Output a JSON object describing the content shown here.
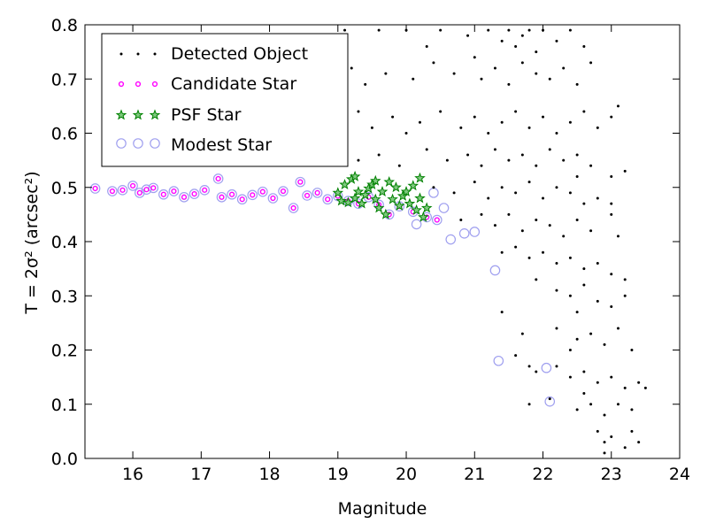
{
  "chart_data": {
    "type": "scatter",
    "xlabel": "Magnitude",
    "ylabel": "T = 2σ² (arcsec²)",
    "xlim": [
      15.3,
      24.0
    ],
    "ylim": [
      0.0,
      0.8
    ],
    "x_ticks": [
      16,
      17,
      18,
      19,
      20,
      21,
      22,
      23,
      24
    ],
    "y_ticks": [
      0.0,
      0.1,
      0.2,
      0.3,
      0.4,
      0.5,
      0.6,
      0.7,
      0.8
    ],
    "x_tick_labels": [
      "16",
      "17",
      "18",
      "19",
      "20",
      "21",
      "22",
      "23",
      "24"
    ],
    "y_tick_labels": [
      "0.0",
      "0.1",
      "0.2",
      "0.3",
      "0.4",
      "0.5",
      "0.6",
      "0.7",
      "0.8"
    ],
    "grid": false,
    "legend_position": "top-left",
    "colors": {
      "detected": "#000000",
      "candidate": "#ff00ff",
      "psf_edge": "#008000",
      "psf_fill": "#7fc97f",
      "modest": "#9f9fef"
    },
    "series": [
      {
        "name": "Detected Object",
        "marker": "dot",
        "points": [
          [
            19.1,
            0.79
          ],
          [
            19.6,
            0.79
          ],
          [
            20.0,
            0.79
          ],
          [
            20.3,
            0.76
          ],
          [
            20.5,
            0.79
          ],
          [
            20.9,
            0.78
          ],
          [
            21.0,
            0.74
          ],
          [
            21.2,
            0.79
          ],
          [
            21.4,
            0.77
          ],
          [
            21.5,
            0.79
          ],
          [
            21.6,
            0.76
          ],
          [
            21.7,
            0.78
          ],
          [
            21.8,
            0.79
          ],
          [
            21.9,
            0.75
          ],
          [
            22.0,
            0.79
          ],
          [
            22.2,
            0.77
          ],
          [
            22.4,
            0.79
          ],
          [
            22.6,
            0.76
          ],
          [
            19.2,
            0.72
          ],
          [
            19.4,
            0.69
          ],
          [
            19.7,
            0.71
          ],
          [
            20.1,
            0.7
          ],
          [
            20.4,
            0.73
          ],
          [
            20.7,
            0.71
          ],
          [
            21.1,
            0.7
          ],
          [
            21.3,
            0.72
          ],
          [
            21.5,
            0.69
          ],
          [
            21.7,
            0.73
          ],
          [
            21.9,
            0.71
          ],
          [
            22.1,
            0.7
          ],
          [
            22.3,
            0.72
          ],
          [
            22.5,
            0.69
          ],
          [
            22.7,
            0.73
          ],
          [
            23.1,
            0.65
          ],
          [
            19.3,
            0.64
          ],
          [
            19.5,
            0.61
          ],
          [
            19.8,
            0.63
          ],
          [
            20.0,
            0.6
          ],
          [
            20.2,
            0.62
          ],
          [
            20.5,
            0.64
          ],
          [
            20.8,
            0.61
          ],
          [
            21.0,
            0.63
          ],
          [
            21.2,
            0.6
          ],
          [
            21.4,
            0.62
          ],
          [
            21.6,
            0.64
          ],
          [
            21.8,
            0.61
          ],
          [
            22.0,
            0.63
          ],
          [
            22.2,
            0.6
          ],
          [
            22.4,
            0.62
          ],
          [
            22.6,
            0.64
          ],
          [
            22.8,
            0.61
          ],
          [
            23.0,
            0.63
          ],
          [
            19.1,
            0.57
          ],
          [
            19.3,
            0.55
          ],
          [
            19.6,
            0.56
          ],
          [
            19.9,
            0.54
          ],
          [
            20.3,
            0.57
          ],
          [
            20.6,
            0.55
          ],
          [
            20.9,
            0.56
          ],
          [
            21.1,
            0.54
          ],
          [
            21.3,
            0.57
          ],
          [
            21.5,
            0.55
          ],
          [
            21.7,
            0.56
          ],
          [
            21.9,
            0.54
          ],
          [
            22.1,
            0.57
          ],
          [
            22.3,
            0.55
          ],
          [
            22.5,
            0.56
          ],
          [
            22.7,
            0.54
          ],
          [
            23.0,
            0.52
          ],
          [
            23.2,
            0.53
          ],
          [
            20.4,
            0.5
          ],
          [
            20.7,
            0.49
          ],
          [
            21.0,
            0.51
          ],
          [
            21.2,
            0.48
          ],
          [
            21.4,
            0.5
          ],
          [
            21.6,
            0.49
          ],
          [
            21.8,
            0.51
          ],
          [
            22.0,
            0.48
          ],
          [
            22.2,
            0.5
          ],
          [
            22.4,
            0.49
          ],
          [
            22.6,
            0.47
          ],
          [
            22.8,
            0.48
          ],
          [
            23.0,
            0.47
          ],
          [
            22.5,
            0.52
          ],
          [
            20.8,
            0.44
          ],
          [
            21.1,
            0.45
          ],
          [
            21.3,
            0.43
          ],
          [
            21.5,
            0.45
          ],
          [
            21.7,
            0.42
          ],
          [
            21.9,
            0.44
          ],
          [
            22.1,
            0.43
          ],
          [
            22.3,
            0.41
          ],
          [
            22.5,
            0.44
          ],
          [
            22.7,
            0.42
          ],
          [
            23.0,
            0.45
          ],
          [
            23.1,
            0.41
          ],
          [
            21.4,
            0.38
          ],
          [
            21.6,
            0.39
          ],
          [
            21.8,
            0.37
          ],
          [
            22.0,
            0.38
          ],
          [
            22.2,
            0.36
          ],
          [
            22.4,
            0.37
          ],
          [
            22.6,
            0.35
          ],
          [
            22.8,
            0.36
          ],
          [
            23.0,
            0.34
          ],
          [
            23.2,
            0.33
          ],
          [
            21.9,
            0.33
          ],
          [
            22.2,
            0.31
          ],
          [
            22.4,
            0.3
          ],
          [
            22.6,
            0.32
          ],
          [
            22.8,
            0.29
          ],
          [
            23.0,
            0.28
          ],
          [
            23.2,
            0.3
          ],
          [
            22.5,
            0.27
          ],
          [
            21.4,
            0.27
          ],
          [
            21.7,
            0.23
          ],
          [
            22.2,
            0.24
          ],
          [
            22.5,
            0.22
          ],
          [
            22.7,
            0.23
          ],
          [
            22.9,
            0.21
          ],
          [
            23.1,
            0.24
          ],
          [
            23.3,
            0.2
          ],
          [
            22.4,
            0.2
          ],
          [
            21.8,
            0.17
          ],
          [
            21.9,
            0.16
          ],
          [
            22.2,
            0.17
          ],
          [
            22.4,
            0.15
          ],
          [
            22.6,
            0.16
          ],
          [
            22.8,
            0.14
          ],
          [
            23.0,
            0.15
          ],
          [
            23.2,
            0.13
          ],
          [
            23.4,
            0.14
          ],
          [
            23.5,
            0.13
          ],
          [
            21.6,
            0.19
          ],
          [
            21.8,
            0.1
          ],
          [
            22.1,
            0.11
          ],
          [
            22.5,
            0.09
          ],
          [
            22.7,
            0.1
          ],
          [
            22.9,
            0.08
          ],
          [
            23.1,
            0.1
          ],
          [
            23.3,
            0.09
          ],
          [
            22.6,
            0.12
          ],
          [
            22.8,
            0.05
          ],
          [
            22.9,
            0.03
          ],
          [
            23.0,
            0.04
          ],
          [
            23.2,
            0.02
          ],
          [
            23.3,
            0.05
          ],
          [
            22.9,
            0.01
          ],
          [
            23.4,
            0.03
          ]
        ]
      },
      {
        "name": "Candidate Star",
        "marker": "circle-small",
        "points": [
          [
            15.45,
            0.498
          ],
          [
            15.7,
            0.493
          ],
          [
            15.85,
            0.495
          ],
          [
            16.0,
            0.503
          ],
          [
            16.1,
            0.49
          ],
          [
            16.2,
            0.496
          ],
          [
            16.3,
            0.499
          ],
          [
            16.45,
            0.487
          ],
          [
            16.6,
            0.493
          ],
          [
            16.75,
            0.482
          ],
          [
            16.9,
            0.488
          ],
          [
            17.05,
            0.495
          ],
          [
            17.25,
            0.516
          ],
          [
            17.3,
            0.482
          ],
          [
            17.45,
            0.487
          ],
          [
            17.6,
            0.478
          ],
          [
            17.75,
            0.486
          ],
          [
            17.9,
            0.492
          ],
          [
            18.05,
            0.48
          ],
          [
            18.2,
            0.493
          ],
          [
            18.35,
            0.462
          ],
          [
            18.45,
            0.51
          ],
          [
            18.55,
            0.485
          ],
          [
            18.7,
            0.49
          ],
          [
            18.85,
            0.478
          ],
          [
            19.0,
            0.484
          ],
          [
            19.15,
            0.475
          ],
          [
            19.3,
            0.47
          ],
          [
            19.45,
            0.482
          ],
          [
            19.6,
            0.468
          ],
          [
            19.75,
            0.45
          ],
          [
            19.9,
            0.465
          ],
          [
            20.1,
            0.455
          ],
          [
            20.3,
            0.445
          ],
          [
            20.45,
            0.44
          ]
        ]
      },
      {
        "name": "PSF Star",
        "marker": "star",
        "points": [
          [
            19.0,
            0.49
          ],
          [
            19.05,
            0.475
          ],
          [
            19.1,
            0.505
          ],
          [
            19.15,
            0.472
          ],
          [
            19.2,
            0.515
          ],
          [
            19.25,
            0.48
          ],
          [
            19.3,
            0.492
          ],
          [
            19.35,
            0.47
          ],
          [
            19.4,
            0.486
          ],
          [
            19.45,
            0.498
          ],
          [
            19.5,
            0.505
          ],
          [
            19.55,
            0.478
          ],
          [
            19.6,
            0.462
          ],
          [
            19.65,
            0.492
          ],
          [
            19.7,
            0.45
          ],
          [
            19.75,
            0.51
          ],
          [
            19.8,
            0.478
          ],
          [
            19.85,
            0.5
          ],
          [
            19.9,
            0.466
          ],
          [
            19.95,
            0.484
          ],
          [
            20.0,
            0.492
          ],
          [
            20.05,
            0.47
          ],
          [
            20.1,
            0.503
          ],
          [
            20.15,
            0.458
          ],
          [
            20.2,
            0.48
          ],
          [
            20.25,
            0.445
          ],
          [
            20.3,
            0.462
          ],
          [
            19.25,
            0.52
          ],
          [
            19.55,
            0.512
          ],
          [
            20.2,
            0.517
          ]
        ]
      },
      {
        "name": "Modest Star",
        "marker": "circle-open",
        "points": [
          [
            15.45,
            0.498
          ],
          [
            15.7,
            0.493
          ],
          [
            15.85,
            0.495
          ],
          [
            16.0,
            0.503
          ],
          [
            16.1,
            0.49
          ],
          [
            16.2,
            0.496
          ],
          [
            16.3,
            0.499
          ],
          [
            16.45,
            0.487
          ],
          [
            16.6,
            0.493
          ],
          [
            16.75,
            0.482
          ],
          [
            16.9,
            0.488
          ],
          [
            17.05,
            0.495
          ],
          [
            17.25,
            0.516
          ],
          [
            17.3,
            0.482
          ],
          [
            17.45,
            0.487
          ],
          [
            17.6,
            0.478
          ],
          [
            17.75,
            0.486
          ],
          [
            17.9,
            0.492
          ],
          [
            18.05,
            0.48
          ],
          [
            18.2,
            0.493
          ],
          [
            18.35,
            0.462
          ],
          [
            18.45,
            0.51
          ],
          [
            18.55,
            0.485
          ],
          [
            18.7,
            0.49
          ],
          [
            18.85,
            0.478
          ],
          [
            19.0,
            0.484
          ],
          [
            19.15,
            0.475
          ],
          [
            19.3,
            0.47
          ],
          [
            19.45,
            0.482
          ],
          [
            19.6,
            0.468
          ],
          [
            19.75,
            0.45
          ],
          [
            19.9,
            0.465
          ],
          [
            20.1,
            0.455
          ],
          [
            20.15,
            0.432
          ],
          [
            20.3,
            0.445
          ],
          [
            20.45,
            0.44
          ],
          [
            20.55,
            0.462
          ],
          [
            20.65,
            0.404
          ],
          [
            20.85,
            0.415
          ],
          [
            21.0,
            0.418
          ],
          [
            21.3,
            0.347
          ],
          [
            21.35,
            0.18
          ],
          [
            22.05,
            0.167
          ],
          [
            22.1,
            0.105
          ],
          [
            20.4,
            0.49
          ]
        ]
      }
    ]
  }
}
